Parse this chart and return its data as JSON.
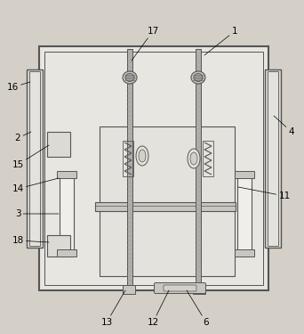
{
  "bg": "#d4d0c8",
  "lc": "#555555",
  "lc2": "#777777",
  "frame_fill": "#e8e6e0",
  "panel_fill": "#dcdad4",
  "inner_fill": "#e4e2dc",
  "gray_fill": "#c8c6c0",
  "white_fill": "#f0eeea",
  "rod_fill": "#b0aeaa",
  "label_fs": 7.5,
  "fig_w": 3.42,
  "fig_h": 3.75,
  "dpi": 100
}
